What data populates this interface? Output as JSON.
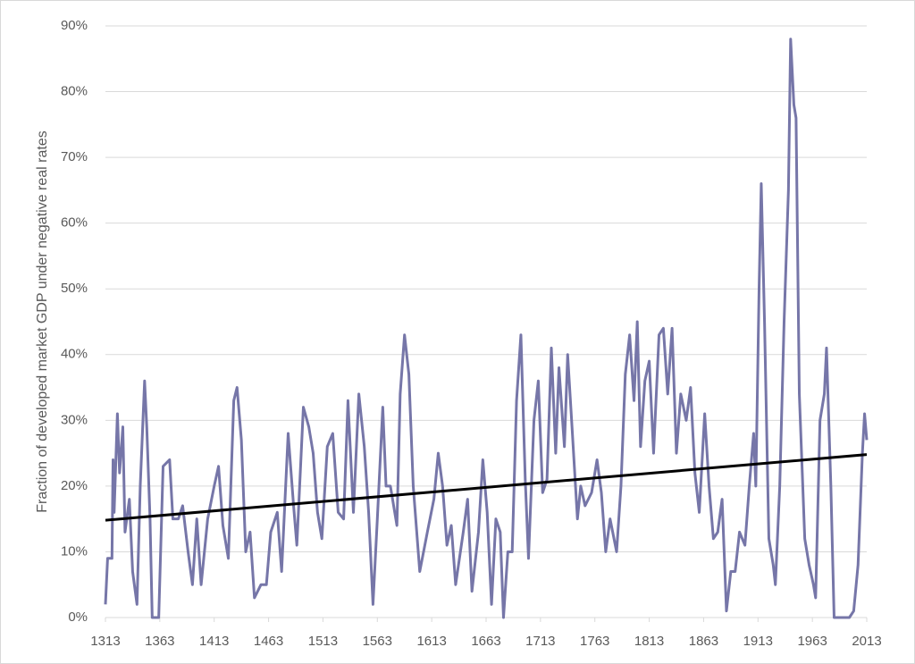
{
  "chart_data": {
    "type": "line",
    "y_label": "Fraction of developed market GDP under negative real rates",
    "series": [
      {
        "color": "#7676a8",
        "x": [
          1313,
          1315,
          1319,
          1320,
          1321,
          1324,
          1326,
          1329,
          1331,
          1335,
          1338,
          1342,
          1345,
          1349,
          1351,
          1354,
          1356,
          1362,
          1366,
          1372,
          1375,
          1380,
          1384,
          1389,
          1393,
          1397,
          1401,
          1407,
          1413,
          1417,
          1421,
          1426,
          1431,
          1434,
          1438,
          1442,
          1446,
          1450,
          1456,
          1461,
          1465,
          1471,
          1475,
          1481,
          1486,
          1489,
          1495,
          1500,
          1504,
          1508,
          1512,
          1517,
          1522,
          1527,
          1532,
          1536,
          1541,
          1546,
          1551,
          1555,
          1559,
          1563,
          1568,
          1571,
          1575,
          1581,
          1584,
          1588,
          1592,
          1596,
          1602,
          1609,
          1615,
          1619,
          1623,
          1627,
          1631,
          1635,
          1642,
          1646,
          1650,
          1656,
          1660,
          1664,
          1668,
          1672,
          1676,
          1679,
          1683,
          1687,
          1691,
          1695,
          1699,
          1702,
          1707,
          1711,
          1715,
          1719,
          1723,
          1727,
          1730,
          1735,
          1738,
          1742,
          1747,
          1750,
          1754,
          1760,
          1765,
          1769,
          1773,
          1777,
          1783,
          1787,
          1791,
          1795,
          1799,
          1802,
          1805,
          1809,
          1813,
          1817,
          1822,
          1826,
          1830,
          1834,
          1838,
          1842,
          1847,
          1851,
          1855,
          1859,
          1864,
          1868,
          1872,
          1876,
          1880,
          1884,
          1888,
          1892,
          1896,
          1901,
          1905,
          1909,
          1911,
          1914,
          1916,
          1919,
          1923,
          1927,
          1929,
          1933,
          1937,
          1941,
          1943,
          1946,
          1948,
          1951,
          1956,
          1960,
          1964,
          1966,
          1970,
          1974,
          1976,
          1980,
          1983,
          1988,
          1997,
          2001,
          2005,
          2009,
          2011,
          2013
        ],
        "values": [
          2,
          9,
          9,
          24,
          16,
          31,
          22,
          29,
          13,
          18,
          7,
          2,
          20,
          36,
          29,
          15,
          0,
          0,
          23,
          24,
          15,
          15,
          17,
          10,
          5,
          15,
          5,
          15,
          20,
          23,
          14,
          9,
          33,
          35,
          27,
          10,
          13,
          3,
          5,
          5,
          13,
          16,
          7,
          28,
          17,
          11,
          32,
          29,
          25,
          16,
          12,
          26,
          28,
          16,
          15,
          33,
          16,
          34,
          26,
          16,
          2,
          15,
          32,
          20,
          20,
          14,
          34,
          43,
          37,
          20,
          7,
          13,
          18,
          25,
          20,
          11,
          14,
          5,
          13,
          18,
          4,
          13,
          24,
          16,
          2,
          15,
          13,
          0,
          10,
          10,
          33,
          43,
          21,
          9,
          30,
          36,
          19,
          21,
          41,
          25,
          38,
          26,
          40,
          29,
          15,
          20,
          17,
          19,
          24,
          19,
          10,
          15,
          10,
          20,
          37,
          43,
          33,
          45,
          26,
          36,
          39,
          25,
          43,
          44,
          34,
          44,
          25,
          34,
          30,
          35,
          22,
          16,
          31,
          20,
          12,
          13,
          18,
          1,
          7,
          7,
          13,
          11,
          20,
          28,
          20,
          50,
          66,
          45,
          12,
          8,
          5,
          20,
          45,
          65,
          88,
          78,
          76,
          34,
          12,
          8,
          5,
          3,
          30,
          34,
          41,
          20,
          0,
          0,
          0,
          1,
          8,
          25,
          31,
          27
        ]
      },
      {
        "color": "#000000",
        "x": [
          1313,
          2013
        ],
        "values": [
          14.8,
          24.8
        ]
      }
    ],
    "xlim": [
      1313,
      2013
    ],
    "xticks": [
      1313,
      1363,
      1413,
      1463,
      1513,
      1563,
      1613,
      1663,
      1713,
      1763,
      1813,
      1863,
      1913,
      1963,
      2013
    ],
    "ylim": [
      0,
      90
    ],
    "yticks": [
      {
        "value": 0,
        "label": "0%"
      },
      {
        "value": 10,
        "label": "10%"
      },
      {
        "value": 20,
        "label": "20%"
      },
      {
        "value": 30,
        "label": "30%"
      },
      {
        "value": 40,
        "label": "40%"
      },
      {
        "value": 50,
        "label": "50%"
      },
      {
        "value": 60,
        "label": "60%"
      },
      {
        "value": 70,
        "label": "70%"
      },
      {
        "value": 80,
        "label": "80%"
      },
      {
        "value": 90,
        "label": "90%"
      }
    ],
    "grid": true
  }
}
